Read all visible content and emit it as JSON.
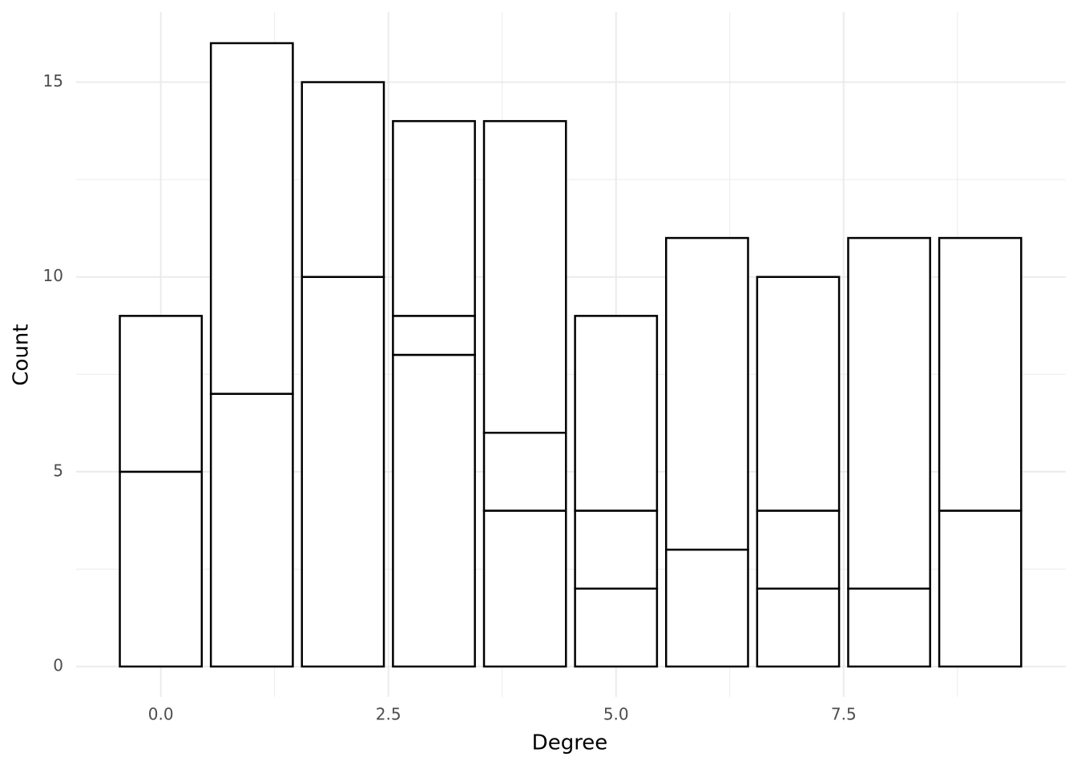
{
  "chart_data": {
    "type": "bar",
    "stacked": true,
    "x_label": "Degree",
    "y_label": "Count",
    "x": [
      0,
      1,
      2,
      3,
      4,
      5,
      6,
      7,
      8,
      9
    ],
    "series": [
      {
        "color": "#ffffff",
        "values": [
          5,
          7,
          10,
          8,
          4,
          2,
          3,
          2,
          2,
          4
        ]
      },
      {
        "color": "#ffffff",
        "values": [
          4,
          9,
          5,
          1,
          2,
          2,
          8,
          2,
          9,
          7
        ]
      },
      {
        "color": "#ffffff",
        "values": [
          null,
          null,
          null,
          5,
          8,
          5,
          null,
          6,
          null,
          null
        ]
      }
    ],
    "bar_width": 0.9,
    "outline_color": "#000000",
    "xlim": [
      -0.93,
      9.94
    ],
    "xticks": [
      {
        "value": 0,
        "label": "0.0"
      },
      2.5,
      {
        "value": 5,
        "label": "5.0"
      },
      7.5
    ],
    "xminorticks": [
      1.25,
      3.75,
      6.25,
      8.75
    ],
    "ylim": [
      -0.78,
      16.8
    ],
    "yticks": [
      0,
      5,
      10,
      15
    ],
    "yminorticks": [
      2.5,
      7.5,
      12.5
    ],
    "grid": true
  }
}
